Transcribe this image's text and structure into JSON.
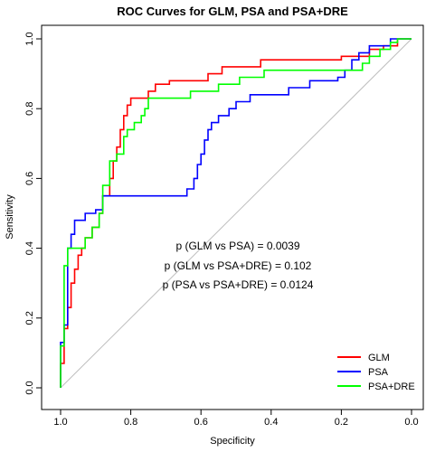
{
  "chart_data": {
    "type": "line",
    "title": "ROC Curves for GLM, PSA and PSA+DRE",
    "xlabel": "Specificity",
    "ylabel": "Sensitivity",
    "xlim": [
      1.0,
      0.0
    ],
    "ylim": [
      0.0,
      1.0
    ],
    "x_reversed": true,
    "x_ticks": [
      1.0,
      0.8,
      0.6,
      0.4,
      0.2,
      0.0
    ],
    "y_ticks": [
      0.0,
      0.2,
      0.4,
      0.6,
      0.8,
      1.0
    ],
    "x_tick_labels": [
      "1.0",
      "0.8",
      "0.6",
      "0.4",
      "0.2",
      "0.0"
    ],
    "y_tick_labels": [
      "0.0",
      "0.2",
      "0.4",
      "0.6",
      "0.8",
      "1.0"
    ],
    "grid": false,
    "legend_position": "bottom-right",
    "reference_line": {
      "x": [
        1.0,
        0.0
      ],
      "y": [
        0.0,
        1.0
      ],
      "color": "#bebebe"
    },
    "annotations": [
      "p (GLM vs PSA) = 0.0039",
      "p (GLM vs PSA+DRE) = 0.102",
      "p (PSA vs PSA+DRE) = 0.0124"
    ],
    "series": [
      {
        "name": "GLM",
        "color": "#ff0000",
        "points": [
          [
            1.0,
            0.0
          ],
          [
            1.0,
            0.07
          ],
          [
            0.99,
            0.07
          ],
          [
            0.99,
            0.17
          ],
          [
            0.98,
            0.17
          ],
          [
            0.98,
            0.23
          ],
          [
            0.97,
            0.23
          ],
          [
            0.97,
            0.3
          ],
          [
            0.96,
            0.3
          ],
          [
            0.96,
            0.34
          ],
          [
            0.95,
            0.34
          ],
          [
            0.95,
            0.38
          ],
          [
            0.94,
            0.38
          ],
          [
            0.94,
            0.4
          ],
          [
            0.93,
            0.4
          ],
          [
            0.93,
            0.43
          ],
          [
            0.91,
            0.43
          ],
          [
            0.91,
            0.46
          ],
          [
            0.89,
            0.46
          ],
          [
            0.89,
            0.5
          ],
          [
            0.88,
            0.5
          ],
          [
            0.88,
            0.55
          ],
          [
            0.86,
            0.55
          ],
          [
            0.86,
            0.6
          ],
          [
            0.85,
            0.6
          ],
          [
            0.85,
            0.65
          ],
          [
            0.84,
            0.65
          ],
          [
            0.84,
            0.69
          ],
          [
            0.83,
            0.69
          ],
          [
            0.83,
            0.74
          ],
          [
            0.82,
            0.74
          ],
          [
            0.82,
            0.78
          ],
          [
            0.81,
            0.78
          ],
          [
            0.81,
            0.81
          ],
          [
            0.8,
            0.81
          ],
          [
            0.8,
            0.83
          ],
          [
            0.75,
            0.83
          ],
          [
            0.75,
            0.85
          ],
          [
            0.73,
            0.85
          ],
          [
            0.73,
            0.87
          ],
          [
            0.69,
            0.87
          ],
          [
            0.69,
            0.88
          ],
          [
            0.58,
            0.88
          ],
          [
            0.58,
            0.9
          ],
          [
            0.54,
            0.9
          ],
          [
            0.54,
            0.92
          ],
          [
            0.43,
            0.92
          ],
          [
            0.43,
            0.94
          ],
          [
            0.2,
            0.94
          ],
          [
            0.2,
            0.95
          ],
          [
            0.12,
            0.95
          ],
          [
            0.12,
            0.97
          ],
          [
            0.08,
            0.97
          ],
          [
            0.08,
            0.98
          ],
          [
            0.04,
            0.98
          ],
          [
            0.04,
            1.0
          ],
          [
            0.0,
            1.0
          ]
        ]
      },
      {
        "name": "PSA",
        "color": "#0000ff",
        "points": [
          [
            1.0,
            0.0
          ],
          [
            1.0,
            0.13
          ],
          [
            0.99,
            0.13
          ],
          [
            0.99,
            0.18
          ],
          [
            0.98,
            0.18
          ],
          [
            0.98,
            0.4
          ],
          [
            0.97,
            0.4
          ],
          [
            0.97,
            0.44
          ],
          [
            0.96,
            0.44
          ],
          [
            0.96,
            0.48
          ],
          [
            0.93,
            0.48
          ],
          [
            0.93,
            0.5
          ],
          [
            0.9,
            0.5
          ],
          [
            0.9,
            0.51
          ],
          [
            0.88,
            0.51
          ],
          [
            0.88,
            0.55
          ],
          [
            0.64,
            0.55
          ],
          [
            0.64,
            0.57
          ],
          [
            0.62,
            0.57
          ],
          [
            0.62,
            0.6
          ],
          [
            0.61,
            0.6
          ],
          [
            0.61,
            0.64
          ],
          [
            0.6,
            0.64
          ],
          [
            0.6,
            0.67
          ],
          [
            0.59,
            0.67
          ],
          [
            0.59,
            0.71
          ],
          [
            0.58,
            0.71
          ],
          [
            0.58,
            0.74
          ],
          [
            0.57,
            0.74
          ],
          [
            0.57,
            0.76
          ],
          [
            0.55,
            0.76
          ],
          [
            0.55,
            0.78
          ],
          [
            0.52,
            0.78
          ],
          [
            0.52,
            0.8
          ],
          [
            0.5,
            0.8
          ],
          [
            0.5,
            0.82
          ],
          [
            0.46,
            0.82
          ],
          [
            0.46,
            0.84
          ],
          [
            0.35,
            0.84
          ],
          [
            0.35,
            0.86
          ],
          [
            0.29,
            0.86
          ],
          [
            0.29,
            0.88
          ],
          [
            0.21,
            0.88
          ],
          [
            0.21,
            0.89
          ],
          [
            0.19,
            0.89
          ],
          [
            0.19,
            0.91
          ],
          [
            0.17,
            0.91
          ],
          [
            0.17,
            0.94
          ],
          [
            0.15,
            0.94
          ],
          [
            0.15,
            0.96
          ],
          [
            0.12,
            0.96
          ],
          [
            0.12,
            0.98
          ],
          [
            0.06,
            0.98
          ],
          [
            0.06,
            1.0
          ],
          [
            0.0,
            1.0
          ]
        ]
      },
      {
        "name": "PSA+DRE",
        "color": "#00ff00",
        "points": [
          [
            1.0,
            0.0
          ],
          [
            1.0,
            0.12
          ],
          [
            0.99,
            0.12
          ],
          [
            0.99,
            0.35
          ],
          [
            0.98,
            0.35
          ],
          [
            0.98,
            0.4
          ],
          [
            0.93,
            0.4
          ],
          [
            0.93,
            0.43
          ],
          [
            0.91,
            0.43
          ],
          [
            0.91,
            0.46
          ],
          [
            0.89,
            0.46
          ],
          [
            0.89,
            0.5
          ],
          [
            0.88,
            0.5
          ],
          [
            0.88,
            0.58
          ],
          [
            0.86,
            0.58
          ],
          [
            0.86,
            0.65
          ],
          [
            0.84,
            0.65
          ],
          [
            0.84,
            0.67
          ],
          [
            0.82,
            0.67
          ],
          [
            0.82,
            0.72
          ],
          [
            0.81,
            0.72
          ],
          [
            0.81,
            0.74
          ],
          [
            0.79,
            0.74
          ],
          [
            0.79,
            0.76
          ],
          [
            0.77,
            0.76
          ],
          [
            0.77,
            0.78
          ],
          [
            0.76,
            0.78
          ],
          [
            0.76,
            0.8
          ],
          [
            0.75,
            0.8
          ],
          [
            0.75,
            0.83
          ],
          [
            0.63,
            0.83
          ],
          [
            0.63,
            0.85
          ],
          [
            0.55,
            0.85
          ],
          [
            0.55,
            0.87
          ],
          [
            0.49,
            0.87
          ],
          [
            0.49,
            0.89
          ],
          [
            0.42,
            0.89
          ],
          [
            0.42,
            0.91
          ],
          [
            0.14,
            0.91
          ],
          [
            0.14,
            0.93
          ],
          [
            0.12,
            0.93
          ],
          [
            0.12,
            0.95
          ],
          [
            0.09,
            0.95
          ],
          [
            0.09,
            0.97
          ],
          [
            0.06,
            0.97
          ],
          [
            0.06,
            0.99
          ],
          [
            0.04,
            0.99
          ],
          [
            0.04,
            1.0
          ],
          [
            0.0,
            1.0
          ]
        ]
      }
    ]
  }
}
